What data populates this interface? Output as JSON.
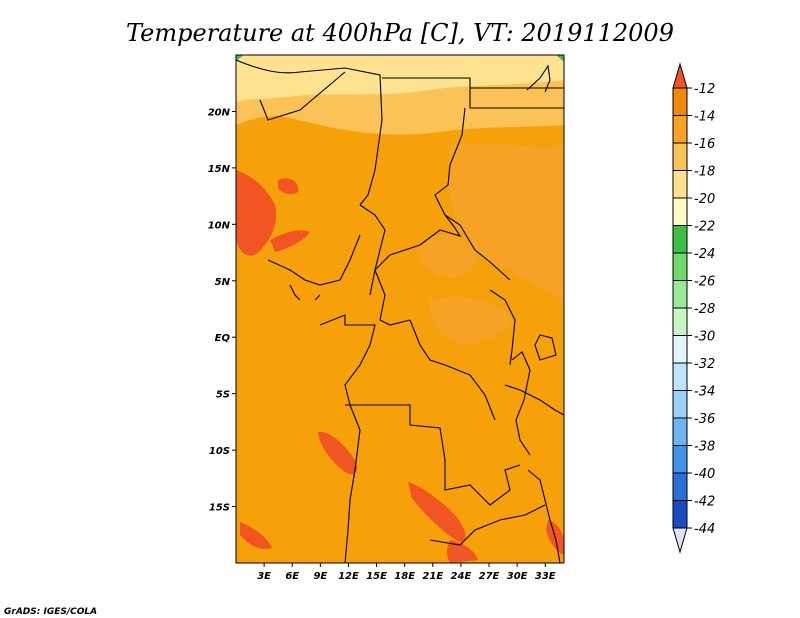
{
  "chart_data": {
    "type": "heatmap",
    "title": "Temperature at 400hPa [C], VT: 2019112009",
    "x_ticks": [
      "3E",
      "6E",
      "9E",
      "12E",
      "15E",
      "18E",
      "21E",
      "24E",
      "27E",
      "30E",
      "33E"
    ],
    "x_tick_values": [
      3,
      6,
      9,
      12,
      15,
      18,
      21,
      24,
      27,
      30,
      33
    ],
    "y_ticks": [
      "20N",
      "15N",
      "10N",
      "5N",
      "EQ",
      "5S",
      "10S",
      "15S"
    ],
    "y_tick_values": [
      20,
      15,
      10,
      5,
      0,
      -5,
      -10,
      -15
    ],
    "lon_range": [
      0,
      35
    ],
    "lat_range": [
      -20,
      25
    ],
    "colorbar": {
      "labels": [
        "-12",
        "-14",
        "-16",
        "-18",
        "-20",
        "-22",
        "-24",
        "-26",
        "-28",
        "-30",
        "-32",
        "-34",
        "-36",
        "-38",
        "-40",
        "-42",
        "-44"
      ],
      "values": [
        -12,
        -14,
        -16,
        -18,
        -20,
        -22,
        -24,
        -26,
        -28,
        -30,
        -32,
        -34,
        -36,
        -38,
        -40,
        -42,
        -44
      ],
      "colors": [
        "#f05523",
        "#f08a0a",
        "#f6a325",
        "#fbc357",
        "#fde28f",
        "#fefbc4",
        "#3fbe46",
        "#6fd96b",
        "#9be89a",
        "#c9f5c5",
        "#e3f7fb",
        "#bfe3fb",
        "#97cff7",
        "#6cb5f2",
        "#4193e8",
        "#2a6fd6",
        "#1a4bbf",
        "#0c2ea1",
        "#0a1a7a",
        "#e2e2f5"
      ]
    },
    "legend": "right"
  },
  "footer": {
    "credit": "GrADS: IGES/COLA"
  }
}
